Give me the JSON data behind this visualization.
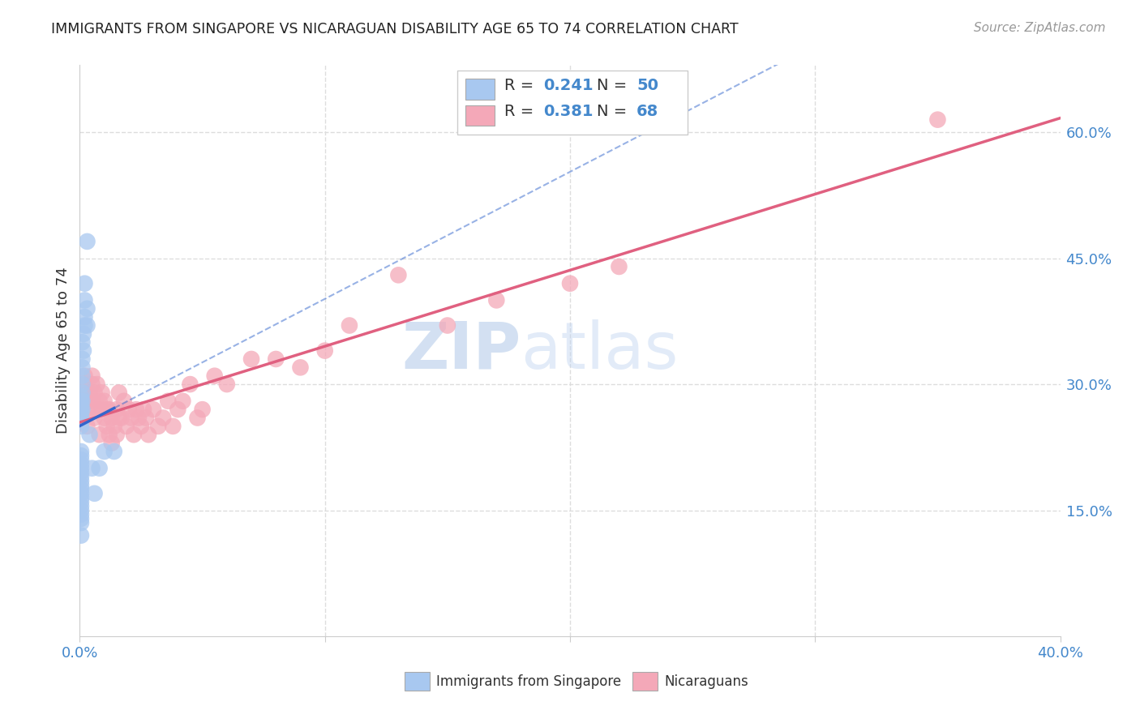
{
  "title": "IMMIGRANTS FROM SINGAPORE VS NICARAGUAN DISABILITY AGE 65 TO 74 CORRELATION CHART",
  "source": "Source: ZipAtlas.com",
  "ylabel": "Disability Age 65 to 74",
  "xlim": [
    0.0,
    0.4
  ],
  "ylim": [
    0.0,
    0.68
  ],
  "singapore_R": "0.241",
  "singapore_N": "50",
  "nicaragua_R": "0.381",
  "nicaragua_N": "68",
  "singapore_color": "#a8c8f0",
  "nicaragua_color": "#f4a8b8",
  "singapore_line_color": "#3366cc",
  "nicaragua_line_color": "#e06080",
  "watermark_zip": "ZIP",
  "watermark_atlas": "atlas",
  "singapore_label": "Immigrants from Singapore",
  "nicaragua_label": "Nicaraguans",
  "sg_x": [
    0.0005,
    0.0005,
    0.0005,
    0.0005,
    0.0005,
    0.0005,
    0.0005,
    0.0005,
    0.0005,
    0.0005,
    0.0005,
    0.0005,
    0.0005,
    0.0005,
    0.0005,
    0.0005,
    0.0005,
    0.0005,
    0.0005,
    0.0005,
    0.0005,
    0.0005,
    0.0005,
    0.0005,
    0.0005,
    0.0005,
    0.0005,
    0.001,
    0.001,
    0.001,
    0.001,
    0.001,
    0.001,
    0.001,
    0.001,
    0.0015,
    0.0015,
    0.002,
    0.002,
    0.002,
    0.002,
    0.003,
    0.003,
    0.003,
    0.004,
    0.005,
    0.006,
    0.008,
    0.01,
    0.014
  ],
  "sg_y": [
    0.25,
    0.255,
    0.26,
    0.265,
    0.27,
    0.275,
    0.28,
    0.285,
    0.22,
    0.215,
    0.21,
    0.205,
    0.2,
    0.195,
    0.19,
    0.185,
    0.18,
    0.175,
    0.17,
    0.165,
    0.16,
    0.155,
    0.15,
    0.145,
    0.14,
    0.135,
    0.12,
    0.31,
    0.3,
    0.32,
    0.29,
    0.28,
    0.27,
    0.35,
    0.33,
    0.34,
    0.36,
    0.38,
    0.4,
    0.37,
    0.42,
    0.37,
    0.39,
    0.47,
    0.24,
    0.2,
    0.17,
    0.2,
    0.22,
    0.22
  ],
  "nic_x": [
    0.0005,
    0.001,
    0.0015,
    0.002,
    0.002,
    0.003,
    0.003,
    0.004,
    0.004,
    0.005,
    0.005,
    0.005,
    0.006,
    0.006,
    0.007,
    0.007,
    0.008,
    0.008,
    0.009,
    0.009,
    0.01,
    0.01,
    0.011,
    0.011,
    0.012,
    0.012,
    0.013,
    0.013,
    0.014,
    0.015,
    0.015,
    0.016,
    0.016,
    0.017,
    0.018,
    0.019,
    0.02,
    0.021,
    0.022,
    0.023,
    0.024,
    0.025,
    0.026,
    0.027,
    0.028,
    0.03,
    0.032,
    0.034,
    0.036,
    0.038,
    0.04,
    0.042,
    0.045,
    0.048,
    0.05,
    0.055,
    0.06,
    0.07,
    0.08,
    0.09,
    0.1,
    0.11,
    0.13,
    0.15,
    0.17,
    0.2,
    0.22,
    0.35
  ],
  "nic_y": [
    0.27,
    0.28,
    0.3,
    0.29,
    0.31,
    0.28,
    0.25,
    0.29,
    0.27,
    0.3,
    0.28,
    0.31,
    0.26,
    0.29,
    0.27,
    0.3,
    0.24,
    0.28,
    0.27,
    0.29,
    0.26,
    0.28,
    0.25,
    0.27,
    0.24,
    0.27,
    0.23,
    0.26,
    0.25,
    0.24,
    0.27,
    0.26,
    0.29,
    0.26,
    0.28,
    0.25,
    0.27,
    0.26,
    0.24,
    0.27,
    0.26,
    0.25,
    0.27,
    0.26,
    0.24,
    0.27,
    0.25,
    0.26,
    0.28,
    0.25,
    0.27,
    0.28,
    0.3,
    0.26,
    0.27,
    0.31,
    0.3,
    0.33,
    0.33,
    0.32,
    0.34,
    0.37,
    0.43,
    0.37,
    0.4,
    0.42,
    0.44,
    0.615
  ]
}
